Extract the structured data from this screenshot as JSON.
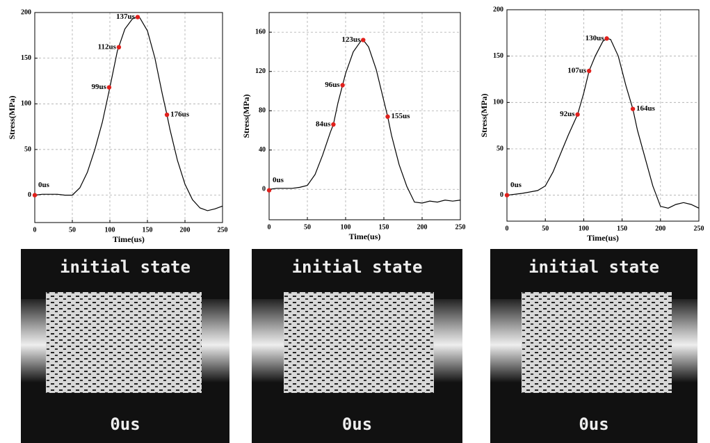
{
  "chart_data": [
    {
      "type": "line",
      "xlabel": "Time(us)",
      "ylabel": "Stress(MPa)",
      "x": [
        0,
        10,
        20,
        30,
        40,
        50,
        60,
        70,
        80,
        90,
        100,
        110,
        120,
        130,
        137,
        140,
        150,
        160,
        170,
        176,
        180,
        190,
        200,
        210,
        220,
        230,
        240,
        250
      ],
      "series": [
        {
          "color": "#000000",
          "values": [
            0,
            1,
            1,
            1,
            0,
            0,
            8,
            25,
            50,
            80,
            118,
            158,
            182,
            193,
            195,
            194,
            180,
            150,
            110,
            88,
            72,
            38,
            12,
            -5,
            -14,
            -17,
            -15,
            -12
          ]
        }
      ],
      "annotations": [
        {
          "x": 0,
          "y": 0,
          "text": "0us"
        },
        {
          "x": 99,
          "y": 118,
          "text": "99us"
        },
        {
          "x": 112,
          "y": 162,
          "text": "112us"
        },
        {
          "x": 137,
          "y": 195,
          "text": "137us"
        },
        {
          "x": 176,
          "y": 88,
          "text": "176us"
        }
      ],
      "marker_color": "#e0201c",
      "xlim": [
        0,
        250
      ],
      "xticks": [
        0,
        50,
        100,
        150,
        200,
        250
      ],
      "ylim": [
        -30,
        200
      ],
      "yticks": [
        0,
        50,
        100,
        150,
        200
      ],
      "grid": true
    },
    {
      "type": "line",
      "xlabel": "Time(us)",
      "ylabel": "Stress(MPa)",
      "x": [
        0,
        10,
        20,
        30,
        40,
        50,
        60,
        70,
        80,
        84,
        90,
        96,
        100,
        110,
        120,
        123,
        130,
        140,
        150,
        155,
        160,
        170,
        180,
        190,
        200,
        210,
        220,
        230,
        240,
        250
      ],
      "series": [
        {
          "color": "#000000",
          "values": [
            0,
            1,
            1,
            1,
            2,
            4,
            15,
            35,
            58,
            66,
            88,
            106,
            118,
            140,
            151,
            152,
            145,
            122,
            90,
            74,
            55,
            25,
            3,
            -13,
            -14,
            -12,
            -13,
            -11,
            -12,
            -11
          ]
        }
      ],
      "annotations": [
        {
          "x": 0,
          "y": -1,
          "text": "0us"
        },
        {
          "x": 84,
          "y": 66,
          "text": "84us"
        },
        {
          "x": 96,
          "y": 106,
          "text": "96us"
        },
        {
          "x": 123,
          "y": 152,
          "text": "123us"
        },
        {
          "x": 155,
          "y": 74,
          "text": "155us"
        }
      ],
      "marker_color": "#e0201c",
      "xlim": [
        0,
        250
      ],
      "xticks": [
        0,
        50,
        100,
        150,
        200,
        250
      ],
      "ylim": [
        -31,
        180
      ],
      "yticks": [
        0,
        40,
        80,
        120,
        160
      ],
      "grid": true
    },
    {
      "type": "line",
      "xlabel": "Time(us)",
      "ylabel": "Stress(MPa)",
      "x": [
        0,
        20,
        40,
        50,
        60,
        70,
        80,
        92,
        100,
        107,
        115,
        125,
        130,
        135,
        145,
        155,
        164,
        170,
        180,
        190,
        200,
        210,
        220,
        230,
        240,
        250
      ],
      "series": [
        {
          "color": "#000000",
          "values": [
            0,
            2,
            5,
            10,
            25,
            45,
            65,
            87,
            110,
            134,
            150,
            166,
            169,
            168,
            150,
            118,
            93,
            70,
            40,
            10,
            -12,
            -14,
            -10,
            -8,
            -10,
            -14
          ]
        }
      ],
      "annotations": [
        {
          "x": 0,
          "y": 0,
          "text": "0us"
        },
        {
          "x": 92,
          "y": 87,
          "text": "92us"
        },
        {
          "x": 107,
          "y": 134,
          "text": "107us"
        },
        {
          "x": 130,
          "y": 169,
          "text": "130us"
        },
        {
          "x": 164,
          "y": 93,
          "text": "164us"
        }
      ],
      "marker_color": "#e0201c",
      "xlim": [
        0,
        250
      ],
      "xticks": [
        0,
        50,
        100,
        150,
        200,
        250
      ],
      "ylim": [
        -28,
        200
      ],
      "yticks": [
        0,
        50,
        100,
        150,
        200
      ],
      "grid": true
    }
  ],
  "images": [
    {
      "top": "initial state",
      "bottom": "0us"
    },
    {
      "top": "initial state",
      "bottom": "0us"
    },
    {
      "top": "initial state",
      "bottom": "0us"
    }
  ]
}
